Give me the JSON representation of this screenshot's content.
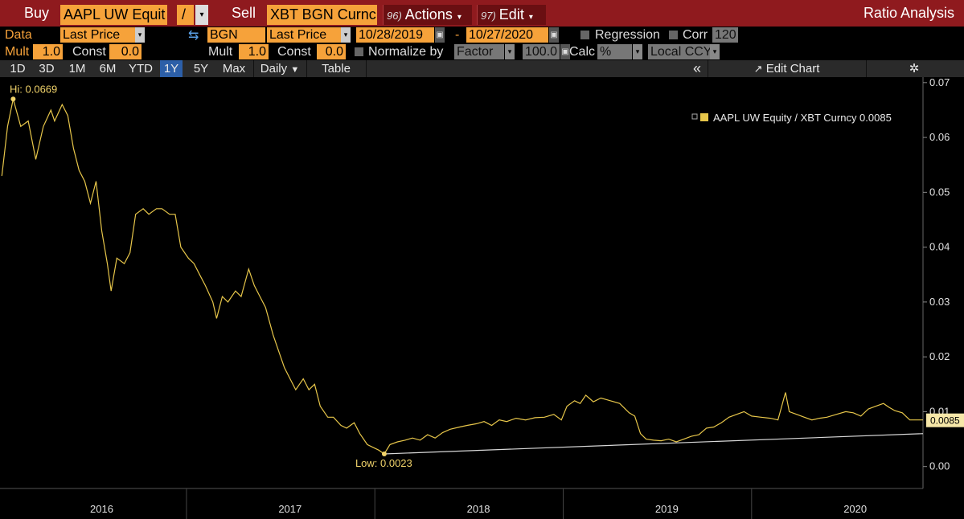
{
  "header": {
    "buy_label": "Buy",
    "buy_ticker": "AAPL UW Equit",
    "operator": "/",
    "sell_label": "Sell",
    "sell_ticker": "XBT BGN Curnc",
    "actions_num": "96)",
    "actions_label": "Actions",
    "edit_num": "97)",
    "edit_label": "Edit",
    "title": "Ratio Analysis"
  },
  "row2": {
    "data_label": "Data",
    "field1": "Last Price",
    "source": "BGN",
    "field2": "Last Price",
    "start_date": "10/28/2019",
    "dash": "-",
    "end_date": "10/27/2020",
    "regression_label": "Regression",
    "corr_label": "Corr",
    "corr_value": "120"
  },
  "row3": {
    "mult_label": "Mult",
    "mult1": "1.0",
    "const_label": "Const",
    "const1": "0.0",
    "mult2_label": "Mult",
    "mult2": "1.0",
    "const2_label": "Const",
    "const2": "0.0",
    "normalize_label": "Normalize by",
    "normalize_value": "Factor",
    "normalize_amount": "100.0",
    "calc_label": "Calc",
    "calc_value": "%",
    "ccy_value": "Local CCY"
  },
  "toolbar": {
    "periods": [
      "1D",
      "3D",
      "1M",
      "6M",
      "YTD",
      "1Y",
      "5Y",
      "Max"
    ],
    "active_period": "1Y",
    "frequency": "Daily",
    "table_label": "Table",
    "collapse_icon": "«",
    "edit_chart_label": "Edit Chart"
  },
  "colors": {
    "header_red": "#8f1a1e",
    "field_orange": "#f6a23a",
    "series_gold": "#e7c64a",
    "trend_line": "#d8d8d8",
    "active_blue": "#2c5fa8"
  },
  "chart_data": {
    "type": "line",
    "legend": {
      "label": "AAPL UW Equity / XBT Curncy",
      "last_value": "0.0085",
      "placement": "top-right"
    },
    "y_axis": {
      "position": "right",
      "ticks": [
        "0.00",
        "0.01",
        "0.02",
        "0.03",
        "0.04",
        "0.05",
        "0.06",
        "0.07"
      ],
      "range": [
        -0.004,
        0.071
      ]
    },
    "x_axis": {
      "labels": [
        "2016",
        "2017",
        "2018",
        "2019",
        "2020"
      ]
    },
    "annotations": {
      "high": "Hi: 0.0669",
      "low": "Low: 0.0023",
      "last": "0.0085"
    },
    "series": [
      {
        "name": "AAPL UW Equity / XBT Curncy",
        "points": [
          [
            2015.52,
            0.053
          ],
          [
            2015.55,
            0.062
          ],
          [
            2015.58,
            0.067
          ],
          [
            2015.62,
            0.062
          ],
          [
            2015.66,
            0.063
          ],
          [
            2015.7,
            0.056
          ],
          [
            2015.74,
            0.062
          ],
          [
            2015.78,
            0.065
          ],
          [
            2015.8,
            0.063
          ],
          [
            2015.84,
            0.066
          ],
          [
            2015.87,
            0.064
          ],
          [
            2015.9,
            0.058
          ],
          [
            2015.93,
            0.054
          ],
          [
            2015.96,
            0.052
          ],
          [
            2015.99,
            0.048
          ],
          [
            2016.02,
            0.052
          ],
          [
            2016.05,
            0.043
          ],
          [
            2016.08,
            0.037
          ],
          [
            2016.1,
            0.032
          ],
          [
            2016.13,
            0.038
          ],
          [
            2016.17,
            0.037
          ],
          [
            2016.2,
            0.039
          ],
          [
            2016.23,
            0.046
          ],
          [
            2016.27,
            0.047
          ],
          [
            2016.3,
            0.046
          ],
          [
            2016.34,
            0.047
          ],
          [
            2016.37,
            0.047
          ],
          [
            2016.41,
            0.046
          ],
          [
            2016.44,
            0.046
          ],
          [
            2016.47,
            0.04
          ],
          [
            2016.51,
            0.038
          ],
          [
            2016.54,
            0.037
          ],
          [
            2016.57,
            0.035
          ],
          [
            2016.6,
            0.033
          ],
          [
            2016.64,
            0.03
          ],
          [
            2016.66,
            0.027
          ],
          [
            2016.69,
            0.031
          ],
          [
            2016.72,
            0.03
          ],
          [
            2016.76,
            0.032
          ],
          [
            2016.79,
            0.031
          ],
          [
            2016.83,
            0.036
          ],
          [
            2016.86,
            0.033
          ],
          [
            2016.89,
            0.031
          ],
          [
            2016.92,
            0.029
          ],
          [
            2016.96,
            0.024
          ],
          [
            2016.99,
            0.021
          ],
          [
            2017.02,
            0.018
          ],
          [
            2017.05,
            0.016
          ],
          [
            2017.08,
            0.014
          ],
          [
            2017.12,
            0.016
          ],
          [
            2017.15,
            0.014
          ],
          [
            2017.18,
            0.015
          ],
          [
            2017.21,
            0.011
          ],
          [
            2017.25,
            0.009
          ],
          [
            2017.28,
            0.009
          ],
          [
            2017.32,
            0.0075
          ],
          [
            2017.35,
            0.007
          ],
          [
            2017.39,
            0.008
          ],
          [
            2017.42,
            0.006
          ],
          [
            2017.46,
            0.004
          ],
          [
            2017.49,
            0.0035
          ],
          [
            2017.52,
            0.003
          ],
          [
            2017.55,
            0.0023
          ],
          [
            2017.58,
            0.004
          ],
          [
            2017.62,
            0.0045
          ],
          [
            2017.66,
            0.0048
          ],
          [
            2017.7,
            0.0052
          ],
          [
            2017.74,
            0.0048
          ],
          [
            2017.78,
            0.0058
          ],
          [
            2017.82,
            0.0052
          ],
          [
            2017.86,
            0.0062
          ],
          [
            2017.9,
            0.0068
          ],
          [
            2017.95,
            0.0072
          ],
          [
            2017.99,
            0.0075
          ],
          [
            2018.04,
            0.0078
          ],
          [
            2018.08,
            0.0082
          ],
          [
            2018.12,
            0.0075
          ],
          [
            2018.16,
            0.0085
          ],
          [
            2018.2,
            0.0082
          ],
          [
            2018.25,
            0.0088
          ],
          [
            2018.3,
            0.0085
          ],
          [
            2018.35,
            0.0089
          ],
          [
            2018.4,
            0.009
          ],
          [
            2018.45,
            0.0095
          ],
          [
            2018.49,
            0.0085
          ],
          [
            2018.52,
            0.011
          ],
          [
            2018.56,
            0.012
          ],
          [
            2018.59,
            0.0115
          ],
          [
            2018.62,
            0.013
          ],
          [
            2018.66,
            0.0118
          ],
          [
            2018.7,
            0.0125
          ],
          [
            2018.75,
            0.012
          ],
          [
            2018.8,
            0.0115
          ],
          [
            2018.85,
            0.0098
          ],
          [
            2018.88,
            0.0092
          ],
          [
            2018.91,
            0.006
          ],
          [
            2018.94,
            0.005
          ],
          [
            2018.98,
            0.0048
          ],
          [
            2019.02,
            0.0047
          ],
          [
            2019.06,
            0.005
          ],
          [
            2019.1,
            0.0045
          ],
          [
            2019.14,
            0.005
          ],
          [
            2019.18,
            0.0055
          ],
          [
            2019.22,
            0.0058
          ],
          [
            2019.26,
            0.007
          ],
          [
            2019.3,
            0.0072
          ],
          [
            2019.34,
            0.008
          ],
          [
            2019.38,
            0.009
          ],
          [
            2019.42,
            0.0095
          ],
          [
            2019.46,
            0.01
          ],
          [
            2019.5,
            0.0092
          ],
          [
            2019.55,
            0.009
          ],
          [
            2019.6,
            0.0088
          ],
          [
            2019.64,
            0.0085
          ],
          [
            2019.68,
            0.0135
          ],
          [
            2019.7,
            0.01
          ],
          [
            2019.74,
            0.0095
          ],
          [
            2019.78,
            0.009
          ],
          [
            2019.82,
            0.0085
          ],
          [
            2019.86,
            0.0088
          ],
          [
            2019.9,
            0.009
          ],
          [
            2019.95,
            0.0095
          ],
          [
            2020.0,
            0.01
          ],
          [
            2020.04,
            0.0098
          ],
          [
            2020.08,
            0.0092
          ],
          [
            2020.12,
            0.0105
          ],
          [
            2020.16,
            0.011
          ],
          [
            2020.2,
            0.0115
          ],
          [
            2020.23,
            0.0108
          ],
          [
            2020.26,
            0.0102
          ],
          [
            2020.3,
            0.0098
          ],
          [
            2020.34,
            0.0085
          ],
          [
            2020.4,
            0.0085
          ]
        ]
      }
    ]
  }
}
